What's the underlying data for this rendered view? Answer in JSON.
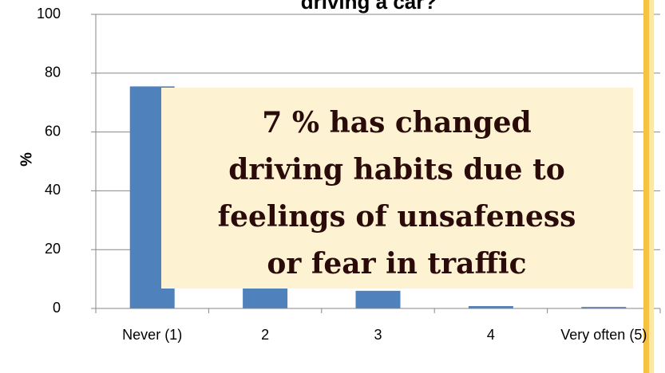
{
  "chart_data": {
    "type": "bar",
    "title": "driving a car?",
    "ylabel": "%",
    "categories": [
      "Never (1)",
      "2",
      "3",
      "4",
      "Very often (5)"
    ],
    "values": [
      75.5,
      13,
      6,
      0.8,
      0.5
    ],
    "color": "#4f81bd",
    "ylim": [
      0,
      100
    ],
    "yticks": [
      0,
      20,
      40,
      60,
      80,
      100
    ],
    "grid": true,
    "annotation": [
      "7 % has changed",
      "driving habits due to",
      "feelings of unsafeness",
      "or fear in traffic"
    ]
  }
}
